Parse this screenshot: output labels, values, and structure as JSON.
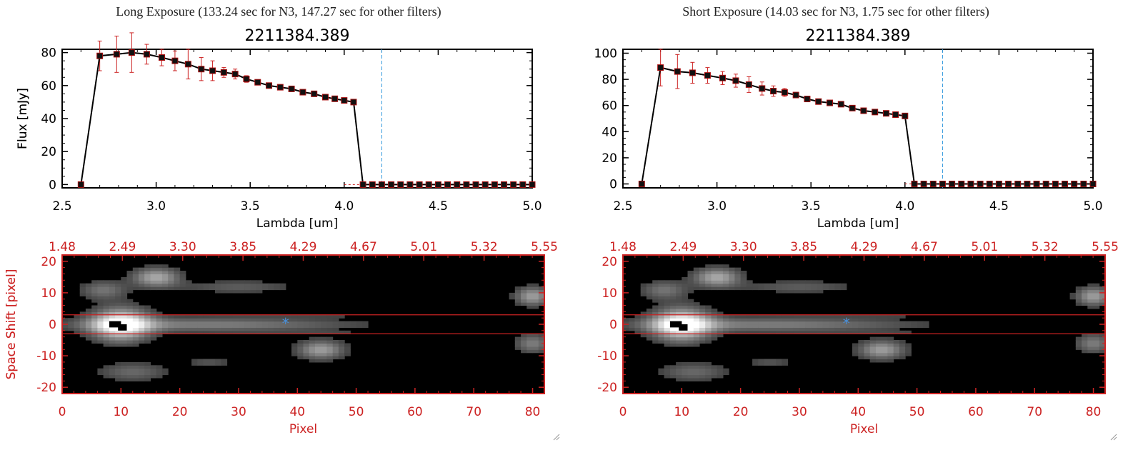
{
  "panels": [
    {
      "title": "Long Exposure (133.24 sec for N3, 147.27 sec for other filters)",
      "spectrum": {
        "title": "2211384.389",
        "xlabel": "Lambda [um]",
        "ylabel": "Flux [mJy]",
        "xticks": [
          "2.5",
          "3.0",
          "3.5",
          "4.0",
          "4.5",
          "5.0"
        ],
        "yticks": [
          "0",
          "20",
          "40",
          "60",
          "80"
        ]
      },
      "image": {
        "ylabel": "Space Shift [pixel]",
        "xlabel": "Pixel",
        "top_ticks": [
          "1.48",
          "2.49",
          "3.30",
          "3.85",
          "4.29",
          "4.67",
          "5.01",
          "5.32",
          "5.55"
        ],
        "xticks": [
          "0",
          "10",
          "20",
          "30",
          "40",
          "50",
          "60",
          "70",
          "80"
        ],
        "yticks": [
          "20",
          "10",
          "0",
          "-10",
          "-20"
        ]
      }
    },
    {
      "title": "Short Exposure (14.03 sec for N3, 1.75 sec for other filters)",
      "spectrum": {
        "title": "2211384.389",
        "xlabel": "Lambda [um]",
        "ylabel": "Flux [mJy]",
        "xticks": [
          "2.5",
          "3.0",
          "3.5",
          "4.0",
          "4.5",
          "5.0"
        ],
        "yticks": [
          "0",
          "20",
          "40",
          "60",
          "80",
          "100"
        ]
      },
      "image": {
        "ylabel": "Space Shift [pixel]",
        "xlabel": "Pixel",
        "top_ticks": [
          "1.48",
          "2.49",
          "3.30",
          "3.85",
          "4.29",
          "4.67",
          "5.01",
          "5.32",
          "5.55"
        ],
        "xticks": [
          "0",
          "10",
          "20",
          "30",
          "40",
          "50",
          "60",
          "70",
          "80"
        ],
        "yticks": [
          "20",
          "10",
          "0",
          "-10",
          "-20"
        ]
      }
    }
  ],
  "colors": {
    "data_line": "#000000",
    "error_bars": "#cc2222",
    "cutoff_line": "#3399dd",
    "image_axes": "#cc2222",
    "star_marker": "#4a90d9"
  },
  "chart_data": [
    {
      "type": "line",
      "title": "2211384.389",
      "xlabel": "Lambda [um]",
      "ylabel": "Flux [mJy]",
      "xlim": [
        2.5,
        5.0
      ],
      "ylim": [
        -2,
        82
      ],
      "cutoff_lambda": 4.2,
      "x": [
        2.6,
        2.7,
        2.79,
        2.87,
        2.95,
        3.03,
        3.1,
        3.17,
        3.24,
        3.3,
        3.36,
        3.42,
        3.48,
        3.54,
        3.6,
        3.66,
        3.72,
        3.78,
        3.84,
        3.9,
        3.95,
        4.0,
        4.05,
        4.1,
        4.15,
        4.2,
        4.25,
        4.3,
        4.35,
        4.4,
        4.45,
        4.5,
        4.55,
        4.6,
        4.65,
        4.7,
        4.75,
        4.8,
        4.85,
        4.9,
        4.95,
        5.0
      ],
      "y": [
        0,
        78,
        79,
        80,
        79,
        77,
        75,
        73,
        70,
        69,
        68,
        67,
        64,
        62,
        60,
        59,
        58,
        56,
        55,
        53,
        52,
        51,
        50,
        0,
        0,
        0,
        0,
        0,
        0,
        0,
        0,
        0,
        0,
        0,
        0,
        0,
        0,
        0,
        0,
        0,
        0,
        0
      ],
      "yerr": [
        0,
        9,
        11,
        12,
        6,
        5,
        6,
        9,
        7,
        6,
        3,
        3,
        2,
        1,
        1,
        1,
        1,
        1,
        1,
        1,
        1,
        1,
        1,
        0,
        0,
        0,
        0,
        0,
        0,
        0,
        0,
        0,
        0,
        0,
        0,
        0,
        0,
        0,
        0,
        0,
        0,
        0
      ]
    },
    {
      "type": "line",
      "title": "2211384.389",
      "xlabel": "Lambda [um]",
      "ylabel": "Flux [mJy]",
      "xlim": [
        2.5,
        5.0
      ],
      "ylim": [
        -3,
        103
      ],
      "cutoff_lambda": 4.2,
      "x": [
        2.6,
        2.7,
        2.79,
        2.87,
        2.95,
        3.03,
        3.1,
        3.17,
        3.24,
        3.3,
        3.36,
        3.42,
        3.48,
        3.54,
        3.6,
        3.66,
        3.72,
        3.78,
        3.84,
        3.9,
        3.95,
        4.0,
        4.05,
        4.1,
        4.15,
        4.2,
        4.25,
        4.3,
        4.35,
        4.4,
        4.45,
        4.5,
        4.55,
        4.6,
        4.65,
        4.7,
        4.75,
        4.8,
        4.85,
        4.9,
        4.95,
        5.0
      ],
      "y": [
        0,
        89,
        86,
        85,
        83,
        81,
        79,
        76,
        73,
        71,
        70,
        68,
        65,
        63,
        62,
        61,
        58,
        56,
        55,
        54,
        53,
        52,
        0,
        0,
        0,
        0,
        0,
        0,
        0,
        0,
        0,
        0,
        0,
        0,
        0,
        0,
        0,
        0,
        0,
        0,
        0,
        0
      ],
      "yerr": [
        0,
        14,
        13,
        8,
        6,
        5,
        5,
        6,
        5,
        4,
        3,
        2,
        2,
        1,
        1,
        1,
        1,
        1,
        1,
        1,
        1,
        1,
        0,
        0,
        0,
        0,
        0,
        0,
        0,
        0,
        0,
        0,
        0,
        0,
        0,
        0,
        0,
        0,
        0,
        0,
        0,
        0
      ]
    },
    {
      "type": "heatmap",
      "xlabel": "Pixel",
      "ylabel": "Space Shift [pixel]",
      "xlim": [
        0,
        82
      ],
      "ylim": [
        -22,
        22
      ],
      "top_axis_ticks": [
        "1.48",
        "2.49",
        "3.30",
        "3.85",
        "4.29",
        "4.67",
        "5.01",
        "5.32",
        "5.55"
      ],
      "aperture_rows": [
        -3,
        3
      ],
      "source_marker": {
        "pixel": 38,
        "shift": 0
      },
      "blobs": [
        {
          "px": 10,
          "sy": 0,
          "sx": 5,
          "syw": 5,
          "v": 1.0
        },
        {
          "px": 34,
          "sy": 0,
          "sx": 30,
          "syw": 2.2,
          "v": 0.55
        },
        {
          "px": 16,
          "sy": 15,
          "sx": 4,
          "syw": 3,
          "v": 0.6
        },
        {
          "px": 7,
          "sy": 11,
          "sx": 4,
          "syw": 3,
          "v": 0.35
        },
        {
          "px": 30,
          "sy": 12,
          "sx": 10,
          "syw": 2,
          "v": 0.25
        },
        {
          "px": 80,
          "sy": 9,
          "sx": 3,
          "syw": 3,
          "v": 0.55
        },
        {
          "px": 44,
          "sy": -8,
          "sx": 4,
          "syw": 3,
          "v": 0.55
        },
        {
          "px": 80,
          "sy": -6,
          "sx": 3,
          "syw": 3,
          "v": 0.4
        },
        {
          "px": 12,
          "sy": -15,
          "sx": 6,
          "syw": 3,
          "v": 0.3
        },
        {
          "px": 25,
          "sy": -12,
          "sx": 4,
          "syw": 2,
          "v": 0.2
        }
      ]
    }
  ]
}
